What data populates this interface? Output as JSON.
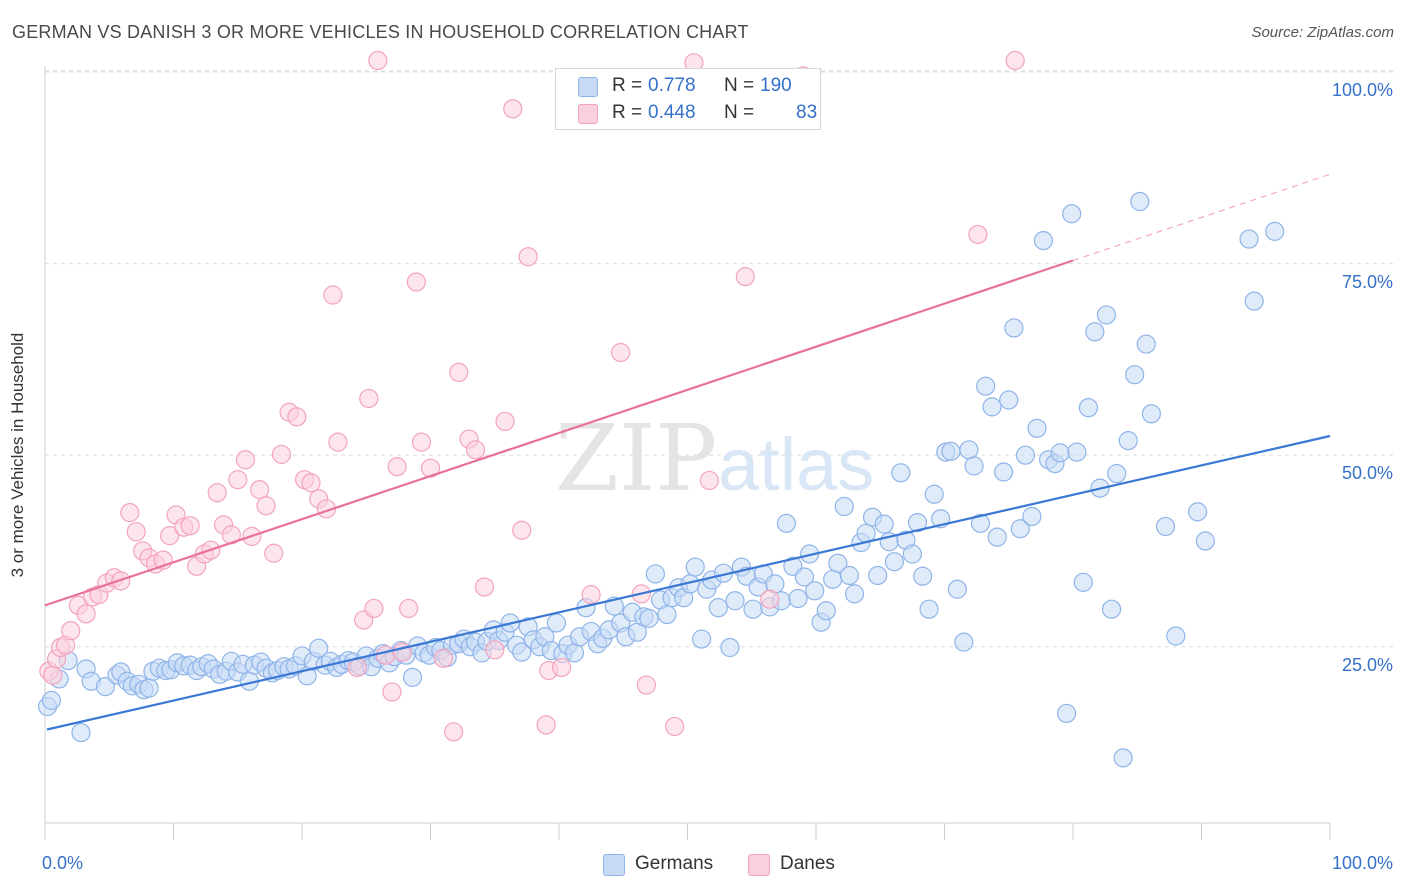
{
  "title": "GERMAN VS DANISH 3 OR MORE VEHICLES IN HOUSEHOLD CORRELATION CHART",
  "source": "Source: ZipAtlas.com",
  "watermark": {
    "zip": "ZIP",
    "atlas": "atlas"
  },
  "stats": [
    {
      "r_label": "R =",
      "r_value": "0.778",
      "n_label": "N =",
      "n_value": "190",
      "color": "#8fb4e8",
      "fill": "#c6daf5"
    },
    {
      "r_label": "R =",
      "r_value": "0.448",
      "n_label": "N =",
      "n_value": "83",
      "color": "#f3a3bd",
      "fill": "#fbd0dd"
    }
  ],
  "legend": [
    {
      "label": "Germans",
      "color": "#8fb4e8",
      "fill": "#c6daf5"
    },
    {
      "label": "Danes",
      "color": "#f3a3bd",
      "fill": "#fbd0dd"
    }
  ],
  "chart_data": {
    "type": "scatter",
    "title": "GERMAN VS DANISH 3 OR MORE VEHICLES IN HOUSEHOLD CORRELATION CHART",
    "xlabel": "",
    "ylabel": "3 or more Vehicles in Household",
    "x_tick_labels": [
      "0.0%",
      "100.0%"
    ],
    "y_tick_labels": [
      "25.0%",
      "50.0%",
      "75.0%",
      "100.0%"
    ],
    "y_ticks": [
      25,
      50,
      75,
      100
    ],
    "xlim": [
      0,
      100
    ],
    "ylim": [
      2,
      100
    ],
    "grid": "horizontal dashed",
    "legend_position": "bottom-center",
    "series": [
      {
        "name": "Germans",
        "color": "#3a78d4",
        "trend": {
          "x": [
            0,
            100
          ],
          "y": [
            14.2,
            52.5
          ]
        },
        "points": [
          [
            0.2,
            17.2
          ],
          [
            0.5,
            18.0
          ],
          [
            1.1,
            20.8
          ],
          [
            1.8,
            23.2
          ],
          [
            2.8,
            13.8
          ],
          [
            3.2,
            22.1
          ],
          [
            3.6,
            20.5
          ],
          [
            4.7,
            19.8
          ],
          [
            5.6,
            21.3
          ],
          [
            5.9,
            21.7
          ],
          [
            6.4,
            20.5
          ],
          [
            6.8,
            19.9
          ],
          [
            7.3,
            20.1
          ],
          [
            7.7,
            19.4
          ],
          [
            8.1,
            19.6
          ],
          [
            8.4,
            21.8
          ],
          [
            8.9,
            22.2
          ],
          [
            9.4,
            21.9
          ],
          [
            9.8,
            22.0
          ],
          [
            10.3,
            22.9
          ],
          [
            10.8,
            22.5
          ],
          [
            11.3,
            22.6
          ],
          [
            11.8,
            21.9
          ],
          [
            12.2,
            22.4
          ],
          [
            12.7,
            22.8
          ],
          [
            13.1,
            22.1
          ],
          [
            13.6,
            21.4
          ],
          [
            14.1,
            21.8
          ],
          [
            14.5,
            23.1
          ],
          [
            15.0,
            21.7
          ],
          [
            15.4,
            22.7
          ],
          [
            15.9,
            20.5
          ],
          [
            16.3,
            22.6
          ],
          [
            16.8,
            23.0
          ],
          [
            17.2,
            22.2
          ],
          [
            17.7,
            21.6
          ],
          [
            18.1,
            21.9
          ],
          [
            18.6,
            22.4
          ],
          [
            19.0,
            22.1
          ],
          [
            19.5,
            22.5
          ],
          [
            20.0,
            23.8
          ],
          [
            20.4,
            21.2
          ],
          [
            20.9,
            23.1
          ],
          [
            21.3,
            24.8
          ],
          [
            21.8,
            22.6
          ],
          [
            22.2,
            23.1
          ],
          [
            22.7,
            22.3
          ],
          [
            23.1,
            22.7
          ],
          [
            23.6,
            23.2
          ],
          [
            24.0,
            23.0
          ],
          [
            24.5,
            22.5
          ],
          [
            25.0,
            23.8
          ],
          [
            25.4,
            22.4
          ],
          [
            25.9,
            23.5
          ],
          [
            26.3,
            24.1
          ],
          [
            26.8,
            22.9
          ],
          [
            27.2,
            23.7
          ],
          [
            27.7,
            24.5
          ],
          [
            28.1,
            23.9
          ],
          [
            28.6,
            21.0
          ],
          [
            29.0,
            25.1
          ],
          [
            29.5,
            24.2
          ],
          [
            29.9,
            23.9
          ],
          [
            30.4,
            24.9
          ],
          [
            30.8,
            24.5
          ],
          [
            31.3,
            23.6
          ],
          [
            31.7,
            25.2
          ],
          [
            32.2,
            25.4
          ],
          [
            32.6,
            26.0
          ],
          [
            33.1,
            25.0
          ],
          [
            33.5,
            25.6
          ],
          [
            34.0,
            24.2
          ],
          [
            34.4,
            25.7
          ],
          [
            34.9,
            27.2
          ],
          [
            35.3,
            25.8
          ],
          [
            35.8,
            26.9
          ],
          [
            36.2,
            28.1
          ],
          [
            36.7,
            25.2
          ],
          [
            37.1,
            24.3
          ],
          [
            37.6,
            27.6
          ],
          [
            38.0,
            25.9
          ],
          [
            38.5,
            25.0
          ],
          [
            38.9,
            26.3
          ],
          [
            39.4,
            24.5
          ],
          [
            39.8,
            28.1
          ],
          [
            40.3,
            24.1
          ],
          [
            40.7,
            25.2
          ],
          [
            41.2,
            24.2
          ],
          [
            41.6,
            26.3
          ],
          [
            42.1,
            30.1
          ],
          [
            42.5,
            27.0
          ],
          [
            43.0,
            25.4
          ],
          [
            43.4,
            26.1
          ],
          [
            43.9,
            27.2
          ],
          [
            44.3,
            30.3
          ],
          [
            44.8,
            28.1
          ],
          [
            45.2,
            26.3
          ],
          [
            45.7,
            29.5
          ],
          [
            46.1,
            26.9
          ],
          [
            46.6,
            28.9
          ],
          [
            47.0,
            28.7
          ],
          [
            47.5,
            34.5
          ],
          [
            47.9,
            31.1
          ],
          [
            48.4,
            29.2
          ],
          [
            48.8,
            31.4
          ],
          [
            49.3,
            32.7
          ],
          [
            49.7,
            31.4
          ],
          [
            50.2,
            33.2
          ],
          [
            50.6,
            35.4
          ],
          [
            51.1,
            26.0
          ],
          [
            51.5,
            32.5
          ],
          [
            51.9,
            33.7
          ],
          [
            52.4,
            30.1
          ],
          [
            52.8,
            34.6
          ],
          [
            53.3,
            24.9
          ],
          [
            53.7,
            31.0
          ],
          [
            54.2,
            35.4
          ],
          [
            54.6,
            34.2
          ],
          [
            55.1,
            29.9
          ],
          [
            55.5,
            32.8
          ],
          [
            55.9,
            34.5
          ],
          [
            56.4,
            30.2
          ],
          [
            56.8,
            33.2
          ],
          [
            57.3,
            31.0
          ],
          [
            57.7,
            41.1
          ],
          [
            58.2,
            35.5
          ],
          [
            58.6,
            31.3
          ],
          [
            59.1,
            34.1
          ],
          [
            59.5,
            37.1
          ],
          [
            59.9,
            32.3
          ],
          [
            60.4,
            28.2
          ],
          [
            60.8,
            29.7
          ],
          [
            61.3,
            33.8
          ],
          [
            61.7,
            35.9
          ],
          [
            62.2,
            43.3
          ],
          [
            62.6,
            34.3
          ],
          [
            63.0,
            31.9
          ],
          [
            63.5,
            38.6
          ],
          [
            63.9,
            39.8
          ],
          [
            64.4,
            41.9
          ],
          [
            64.8,
            34.3
          ],
          [
            65.3,
            41.0
          ],
          [
            65.7,
            38.7
          ],
          [
            66.1,
            36.1
          ],
          [
            66.6,
            47.7
          ],
          [
            67.0,
            38.9
          ],
          [
            67.5,
            37.1
          ],
          [
            67.9,
            41.2
          ],
          [
            68.3,
            34.2
          ],
          [
            68.8,
            29.9
          ],
          [
            69.2,
            44.9
          ],
          [
            69.7,
            41.7
          ],
          [
            70.1,
            50.4
          ],
          [
            70.5,
            50.5
          ],
          [
            71.0,
            32.5
          ],
          [
            71.5,
            25.6
          ],
          [
            71.9,
            50.7
          ],
          [
            72.3,
            48.6
          ],
          [
            72.8,
            41.1
          ],
          [
            73.2,
            59.0
          ],
          [
            73.7,
            56.3
          ],
          [
            74.1,
            39.3
          ],
          [
            74.6,
            47.8
          ],
          [
            75.0,
            57.2
          ],
          [
            75.4,
            66.6
          ],
          [
            75.9,
            40.4
          ],
          [
            76.3,
            50.0
          ],
          [
            76.8,
            42.0
          ],
          [
            77.2,
            53.5
          ],
          [
            77.7,
            78.0
          ],
          [
            78.1,
            49.4
          ],
          [
            78.6,
            48.9
          ],
          [
            79.0,
            50.3
          ],
          [
            79.5,
            16.3
          ],
          [
            79.9,
            81.5
          ],
          [
            80.3,
            50.4
          ],
          [
            80.8,
            33.4
          ],
          [
            81.2,
            56.2
          ],
          [
            81.7,
            66.1
          ],
          [
            82.1,
            45.7
          ],
          [
            82.6,
            68.3
          ],
          [
            83.0,
            29.9
          ],
          [
            83.4,
            47.6
          ],
          [
            83.9,
            10.5
          ],
          [
            84.3,
            51.9
          ],
          [
            84.8,
            60.5
          ],
          [
            85.2,
            83.1
          ],
          [
            85.7,
            64.5
          ],
          [
            86.1,
            55.4
          ],
          [
            87.2,
            40.7
          ],
          [
            88.0,
            26.4
          ],
          [
            89.7,
            42.6
          ],
          [
            90.3,
            38.8
          ],
          [
            93.7,
            78.2
          ],
          [
            94.1,
            70.1
          ],
          [
            95.7,
            79.2
          ]
        ]
      },
      {
        "name": "Danes",
        "color": "#e8709a",
        "trend": {
          "x": [
            0,
            80
          ],
          "y": [
            30.4,
            75.4
          ]
        },
        "points": [
          [
            0.3,
            21.8
          ],
          [
            0.6,
            21.3
          ],
          [
            0.9,
            23.4
          ],
          [
            1.2,
            24.9
          ],
          [
            1.6,
            25.2
          ],
          [
            2.0,
            27.1
          ],
          [
            2.6,
            30.4
          ],
          [
            3.2,
            29.3
          ],
          [
            3.7,
            31.5
          ],
          [
            4.2,
            31.8
          ],
          [
            4.8,
            33.3
          ],
          [
            5.4,
            34.0
          ],
          [
            5.9,
            33.6
          ],
          [
            6.6,
            42.5
          ],
          [
            7.1,
            40.0
          ],
          [
            7.6,
            37.5
          ],
          [
            8.1,
            36.6
          ],
          [
            8.6,
            35.8
          ],
          [
            9.2,
            36.3
          ],
          [
            9.7,
            39.5
          ],
          [
            10.2,
            42.2
          ],
          [
            10.8,
            40.6
          ],
          [
            11.3,
            40.8
          ],
          [
            11.8,
            35.5
          ],
          [
            12.4,
            37.1
          ],
          [
            12.9,
            37.6
          ],
          [
            13.4,
            45.1
          ],
          [
            13.9,
            40.9
          ],
          [
            14.5,
            39.6
          ],
          [
            15.0,
            46.8
          ],
          [
            15.6,
            49.4
          ],
          [
            16.1,
            39.4
          ],
          [
            16.7,
            45.5
          ],
          [
            17.2,
            43.4
          ],
          [
            17.8,
            37.2
          ],
          [
            18.4,
            50.1
          ],
          [
            19.0,
            55.6
          ],
          [
            19.6,
            55.0
          ],
          [
            20.2,
            46.8
          ],
          [
            20.7,
            46.4
          ],
          [
            21.3,
            44.3
          ],
          [
            21.9,
            43.0
          ],
          [
            22.4,
            70.9
          ],
          [
            22.8,
            51.7
          ],
          [
            24.3,
            22.3
          ],
          [
            24.8,
            28.5
          ],
          [
            25.2,
            57.4
          ],
          [
            25.6,
            30.0
          ],
          [
            25.9,
            101.5
          ],
          [
            26.5,
            23.9
          ],
          [
            27.0,
            19.1
          ],
          [
            27.4,
            48.5
          ],
          [
            27.8,
            24.3
          ],
          [
            28.3,
            30.0
          ],
          [
            28.9,
            72.6
          ],
          [
            29.3,
            51.7
          ],
          [
            30.0,
            48.3
          ],
          [
            31.0,
            23.5
          ],
          [
            31.8,
            13.9
          ],
          [
            32.2,
            60.8
          ],
          [
            33.0,
            52.1
          ],
          [
            33.5,
            50.7
          ],
          [
            34.2,
            32.8
          ],
          [
            35.0,
            24.6
          ],
          [
            35.8,
            54.4
          ],
          [
            36.4,
            95.2
          ],
          [
            37.1,
            40.2
          ],
          [
            37.6,
            75.9
          ],
          [
            39.0,
            14.8
          ],
          [
            39.2,
            21.9
          ],
          [
            40.2,
            22.3
          ],
          [
            42.5,
            31.8
          ],
          [
            44.8,
            63.4
          ],
          [
            46.4,
            31.9
          ],
          [
            46.8,
            20.0
          ],
          [
            49.0,
            14.6
          ],
          [
            50.5,
            101.2
          ],
          [
            51.7,
            46.7
          ],
          [
            54.5,
            73.3
          ],
          [
            56.4,
            31.2
          ],
          [
            59.0,
            99.5
          ],
          [
            72.6,
            78.8
          ],
          [
            75.5,
            101.5
          ]
        ]
      }
    ]
  }
}
